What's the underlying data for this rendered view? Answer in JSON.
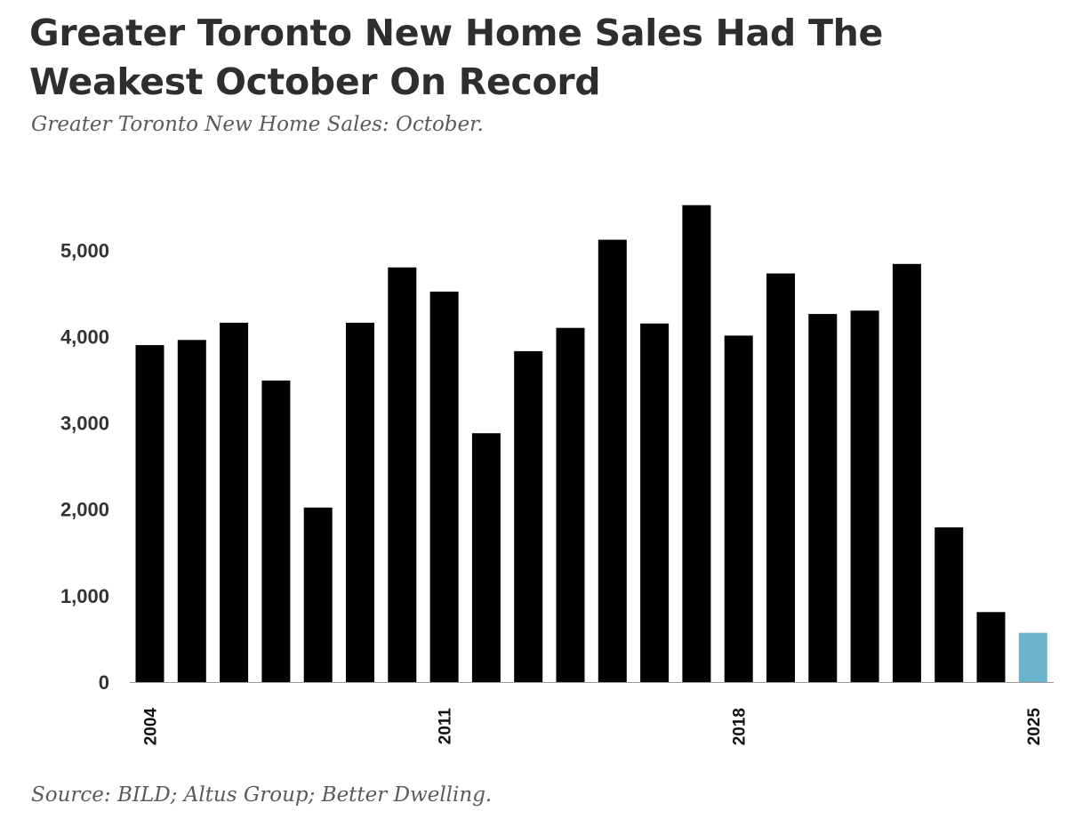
{
  "header": {
    "title": "Greater Toronto New Home Sales Had The Weakest October On Record",
    "subtitle": "Greater Toronto New Home Sales: October."
  },
  "footer": {
    "source": "Source: BILD; Altus Group; Better Dwelling."
  },
  "colors": {
    "bar": "#000000",
    "highlight": "#6bb4cc",
    "axis": "#999999"
  },
  "chart_data": {
    "type": "bar",
    "categories": [
      "2004",
      "2005",
      "2006",
      "2007",
      "2008",
      "2009",
      "2010",
      "2011",
      "2012",
      "2013",
      "2014",
      "2015",
      "2016",
      "2017",
      "2018",
      "2019",
      "2020",
      "2021",
      "2022",
      "2023",
      "2024",
      "2025"
    ],
    "values": [
      3900,
      3960,
      4160,
      3490,
      2020,
      4160,
      4800,
      4520,
      2880,
      3830,
      4100,
      5120,
      4150,
      5520,
      4010,
      4730,
      4260,
      4300,
      4840,
      1790,
      810,
      570
    ],
    "highlight_category": "2025",
    "xtick_labels": [
      "2004",
      "2011",
      "2018",
      "2025"
    ],
    "ytick_labels": [
      "0",
      "1,000",
      "2,000",
      "3,000",
      "4,000",
      "5,000"
    ],
    "yticks": [
      0,
      1000,
      2000,
      3000,
      4000,
      5000
    ],
    "ylim": [
      0,
      5500
    ],
    "xlabel": "",
    "ylabel": "",
    "grid": false,
    "legend": "none"
  }
}
